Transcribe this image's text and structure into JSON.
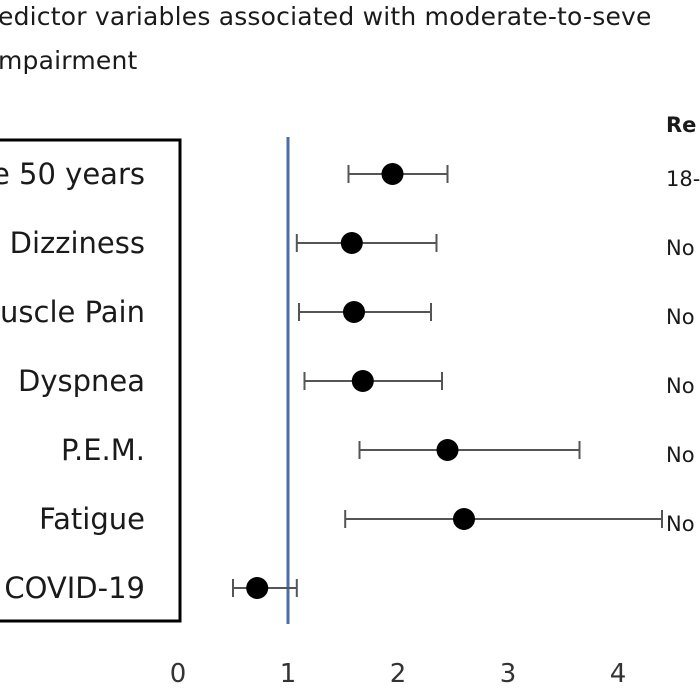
{
  "chart_data": {
    "type": "forest",
    "title_lines": [
      "edictor variables associated with moderate-to-seve",
      "mpairment"
    ],
    "reference_header": "Re",
    "reference_line_x": 1,
    "xlim": [
      0,
      5
    ],
    "x_ticks": [
      "0",
      "1",
      "2",
      "3",
      "4"
    ],
    "x_tick_values": [
      0,
      1,
      2,
      3,
      4
    ],
    "rows": [
      {
        "label": "e 50 years",
        "estimate": 1.95,
        "lower": 1.55,
        "upper": 2.45,
        "reference": "18-"
      },
      {
        "label": "Dizziness",
        "estimate": 1.58,
        "lower": 1.08,
        "upper": 2.35,
        "reference": "No"
      },
      {
        "label": "uscle Pain",
        "estimate": 1.6,
        "lower": 1.1,
        "upper": 2.3,
        "reference": "No"
      },
      {
        "label": "Dyspnea",
        "estimate": 1.68,
        "lower": 1.15,
        "upper": 2.4,
        "reference": "No"
      },
      {
        "label": "P.E.M.",
        "estimate": 2.45,
        "lower": 1.65,
        "upper": 3.65,
        "reference": "No"
      },
      {
        "label": "Fatigue",
        "estimate": 2.6,
        "lower": 1.52,
        "upper": 4.4,
        "reference": "No"
      },
      {
        "label": "COVID-19",
        "estimate": 0.72,
        "lower": 0.5,
        "upper": 1.08,
        "reference": ""
      }
    ]
  }
}
